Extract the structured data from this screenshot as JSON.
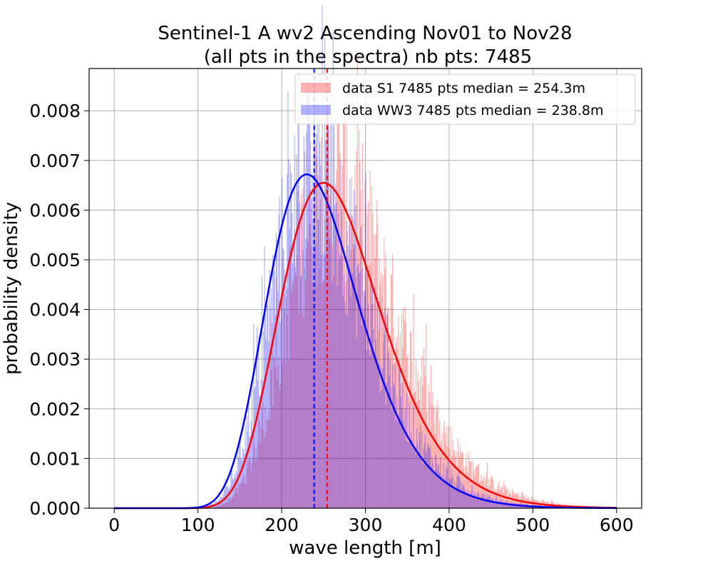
{
  "chart_data": {
    "type": "histogram",
    "title_line1": "Sentinel-1 A wv2 Ascending Nov01 to Nov28",
    "title_line2": "(all pts in the spectra) nb pts: 7485",
    "xlabel": "wave length [m]",
    "ylabel": "probability density",
    "xlim": [
      -30,
      630
    ],
    "ylim": [
      0,
      0.00885
    ],
    "x_ticks": [
      0,
      100,
      200,
      300,
      400,
      500,
      600
    ],
    "x_tick_labels": [
      "0",
      "100",
      "200",
      "300",
      "400",
      "500",
      "600"
    ],
    "y_ticks": [
      0,
      0.001,
      0.002,
      0.003,
      0.004,
      0.005,
      0.006,
      0.007,
      0.008
    ],
    "y_tick_labels": [
      "0.000",
      "0.001",
      "0.002",
      "0.003",
      "0.004",
      "0.005",
      "0.006",
      "0.007",
      "0.008"
    ],
    "grid": true,
    "legend_position": "top-right",
    "series": [
      {
        "name": "data S1 7485 pts median = 254.3m",
        "kind": "histogram",
        "color": "#ff0000",
        "alpha": 0.3,
        "median": 254.3,
        "fit_peak_x": 250,
        "fit_peak_y": 0.00655,
        "fit_sigma": 61,
        "n_points": 7485
      },
      {
        "name": "data WW3 7485 pts median = 238.8m",
        "kind": "histogram",
        "color": "#0000ff",
        "alpha": 0.3,
        "median": 238.8,
        "fit_peak_x": 230,
        "fit_peak_y": 0.00672,
        "fit_sigma": 58,
        "n_points": 7485
      }
    ],
    "fit_curves": [
      {
        "color": "#ff0000",
        "type": "lognormal",
        "peak_x": 250,
        "peak_y": 0.00655,
        "sigma_log": 0.24
      },
      {
        "color": "#0000ff",
        "type": "lognormal",
        "peak_x": 230,
        "peak_y": 0.00672,
        "sigma_log": 0.24
      }
    ],
    "median_lines": [
      {
        "color": "#ff0000",
        "x": 254.3,
        "style": "dashed"
      },
      {
        "color": "#0000ff",
        "x": 238.8,
        "style": "dashed"
      }
    ]
  },
  "legend": {
    "s1_label": "data S1 7485 pts median = 254.3m",
    "ww3_label": "data WW3 7485 pts median = 238.8m"
  }
}
